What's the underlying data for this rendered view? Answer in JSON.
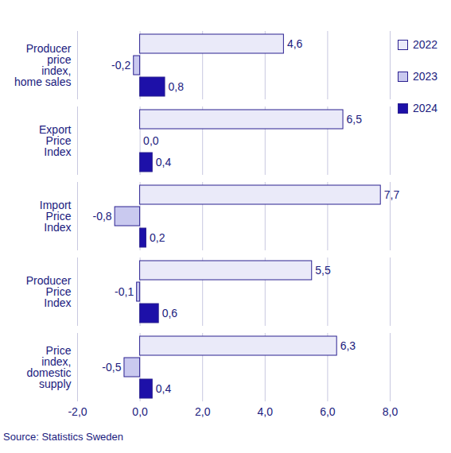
{
  "chart_data": {
    "type": "bar",
    "orientation": "horizontal",
    "caption": "Source: Statistics Sweden",
    "categories": [
      "Producer price index, home sales",
      "Export Price Index",
      "Import Price Index",
      "Producer Price Index",
      "Price index, domestic supply"
    ],
    "series": [
      {
        "name": "2022",
        "color": "#eaeaf9",
        "values": [
          4.6,
          6.5,
          7.7,
          5.5,
          6.3
        ],
        "value_labels": [
          "4,6",
          "6,5",
          "7,7",
          "5,5",
          "6,3"
        ]
      },
      {
        "name": "2023",
        "color": "#c9c9ef",
        "values": [
          -0.2,
          0.0,
          -0.8,
          -0.1,
          -0.5
        ],
        "value_labels": [
          "-0,2",
          "0,0",
          "-0,8",
          "-0,1",
          "-0,5"
        ]
      },
      {
        "name": "2024",
        "color": "#1d10a8",
        "values": [
          0.8,
          0.4,
          0.2,
          0.6,
          0.4
        ],
        "value_labels": [
          "0,8",
          "0,4",
          "0,2",
          "0,6",
          "0,4"
        ]
      }
    ],
    "xlim": [
      -2,
      8
    ],
    "xticks": [
      {
        "value": -2,
        "label": "-2,0"
      },
      {
        "value": 0,
        "label": "0,0"
      },
      {
        "value": 2,
        "label": "2,0"
      },
      {
        "value": 4,
        "label": "4,0"
      },
      {
        "value": 6,
        "label": "6,0"
      },
      {
        "value": 8,
        "label": "8,0"
      }
    ],
    "grid": true,
    "data_labels": true,
    "legend": "right"
  }
}
